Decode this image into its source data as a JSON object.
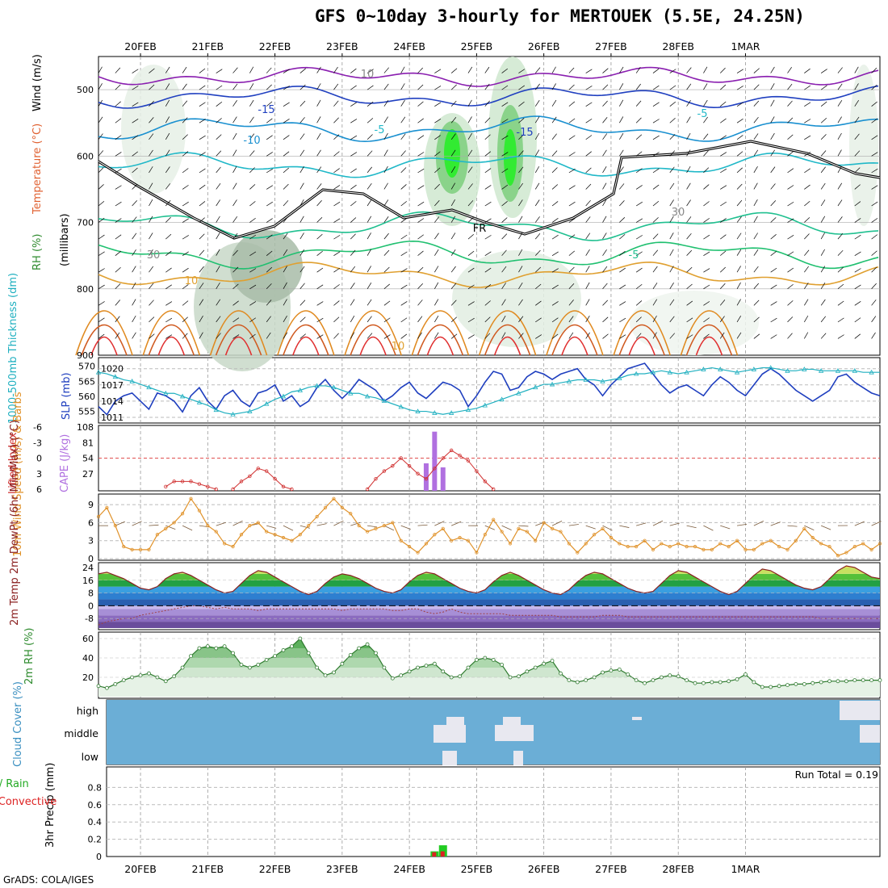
{
  "title": "GFS 0~10day 3-hourly for MERTOUEK (5.5E, 24.25N)",
  "credit": "GrADS: COLA/IGES",
  "run_total": "Run Total = 0.19",
  "date_labels": [
    "20FEB",
    "21FEB",
    "22FEB",
    "23FEB",
    "24FEB",
    "25FEB",
    "26FEB",
    "27FEB",
    "28FEB",
    "1MAR"
  ],
  "colors": {
    "rh_green": "#2e8b2e",
    "temp_red": "#e03030",
    "wind_black": "#000000",
    "cloud_blue": "#6baed6",
    "precip_green": "#22cc22",
    "precip_red": "#dd2222",
    "slp_blue": "#1f3fbf",
    "thickness_cyan": "#20b0c0",
    "cape_purple": "#b070e0",
    "wind10_orange": "#e0922a"
  },
  "chart_data": [
    {
      "type": "heatmap",
      "panel": "upper-air",
      "ylabel": "(millibars)",
      "side_labels": [
        "RH (%)",
        "Temperature (°C)",
        "Wind (m/s)"
      ],
      "y_ticks": [
        "500",
        "600",
        "700",
        "800",
        "900"
      ],
      "contour_labels": [
        "-15",
        "-10",
        "-5",
        "-15",
        "-5",
        "-5",
        "10",
        "10",
        "30",
        "30",
        "FR",
        "10"
      ],
      "isotherms_c": [
        -20,
        -15,
        -10,
        -5,
        0,
        5,
        10,
        15,
        20
      ]
    },
    {
      "type": "line",
      "panel": "slp-thickness",
      "ylabel_left": "1000-500mb Thickness (dm)",
      "ylabel_right": "SLP (mb)",
      "y_ticks_thickness": [
        "570",
        "565",
        "560",
        "555"
      ],
      "y_ticks_slp": [
        "1020",
        "1017",
        "1014",
        "1011"
      ],
      "series": [
        {
          "name": "SLP (mb)",
          "values": [
            1013,
            1011.5,
            1014,
            1015,
            1015.5,
            1014,
            1012.5,
            1015.5,
            1015,
            1014,
            1012,
            1015,
            1016.5,
            1014,
            1012.5,
            1015,
            1016,
            1014,
            1013,
            1015.5,
            1016,
            1017,
            1014,
            1015,
            1013,
            1014,
            1016.5,
            1018,
            1016,
            1014.5,
            1016,
            1018,
            1017,
            1016,
            1014,
            1015,
            1016.5,
            1017.5,
            1015.5,
            1014.5,
            1016,
            1017.5,
            1017,
            1016,
            1013,
            1015,
            1017.5,
            1019.5,
            1019,
            1016,
            1016.5,
            1018.5,
            1019.5,
            1019,
            1018,
            1019,
            1019.5,
            1020,
            1018,
            1017,
            1015,
            1017,
            1018.5,
            1020,
            1020.5,
            1021,
            1019,
            1017,
            1015.5,
            1016.5,
            1017,
            1016,
            1015,
            1017,
            1018.5,
            1017.5,
            1016,
            1015,
            1017,
            1019,
            1020,
            1019,
            1017.5,
            1016,
            1015,
            1014,
            1015,
            1016,
            1018.5,
            1019,
            1017.5,
            1016.5,
            1015.5,
            1015
          ]
        },
        {
          "name": "1000-500mb Thickness (dm)",
          "values": [
            568,
            567.5,
            566.5,
            565.5,
            565,
            564,
            563,
            562,
            561,
            561,
            560,
            559,
            558,
            557,
            555.5,
            554.5,
            554,
            554.5,
            555,
            556,
            557.5,
            559,
            560,
            561.5,
            562,
            563,
            563.5,
            563.5,
            563,
            562,
            561,
            561,
            560,
            559.5,
            558.5,
            557.5,
            556.5,
            555.5,
            555,
            555,
            554.5,
            554,
            554.5,
            555,
            555.5,
            556,
            557,
            558,
            559,
            560,
            561,
            562,
            563,
            564,
            564,
            564.5,
            565,
            565.5,
            565.5,
            565.5,
            565,
            565.5,
            566,
            567,
            567.5,
            567.5,
            568,
            568.5,
            568,
            567.5,
            568,
            568.5,
            569,
            569.5,
            569,
            568.5,
            568,
            568.5,
            569,
            569.5,
            569.5,
            569,
            568.5,
            568.5,
            569,
            569,
            568.5,
            568.5,
            568.5,
            568.5,
            568.5,
            568,
            568,
            568
          ]
        }
      ]
    },
    {
      "type": "bar",
      "panel": "cape-li",
      "ylabel_left": "Lifted Index",
      "ylabel_right": "CAPE (J/kg)",
      "y_ticks_li": [
        "-6",
        "-3",
        "0",
        "3",
        "6"
      ],
      "y_ticks_cape": [
        "108",
        "81",
        "54",
        "27"
      ],
      "series": [
        {
          "name": "CAPE (J/kg)",
          "x_index": [
            39,
            40,
            41
          ],
          "values": [
            45,
            100,
            38
          ]
        },
        {
          "name": "Lifted Index",
          "segments": [
            {
              "start": 8,
              "values": [
                5.5,
                4.5,
                4.5,
                4.5,
                5,
                5.5,
                6
              ]
            },
            {
              "start": 16,
              "values": [
                6,
                4.5,
                3.5,
                2,
                2.5,
                4,
                5.5,
                6
              ]
            },
            {
              "start": 32,
              "values": [
                6,
                4,
                2.5,
                1.5,
                0,
                1.5,
                3,
                4,
                2,
                0,
                -1.5,
                -0.5,
                0.5,
                2.5,
                4.5,
                6
              ]
            }
          ]
        }
      ]
    },
    {
      "type": "line",
      "panel": "wind10m",
      "ylabel": "10m Wind Speed (m/s) & Barbs",
      "y_ticks": [
        "9",
        "6",
        "3",
        "0"
      ],
      "series": [
        {
          "name": "10m Wind Speed (m/s)",
          "values": [
            7,
            8.5,
            5.5,
            2,
            1.5,
            1.5,
            1.5,
            4,
            5,
            6,
            7.5,
            10,
            8,
            5.5,
            4.5,
            2.5,
            2,
            4,
            5.5,
            6,
            4.5,
            4,
            3.5,
            3,
            4,
            5.5,
            7,
            8.5,
            10,
            8.5,
            7.5,
            5.5,
            4.5,
            5,
            5.5,
            6,
            3,
            2,
            1,
            2.5,
            4,
            5,
            3,
            3.5,
            3,
            1,
            4,
            6.5,
            4.5,
            2.5,
            5,
            4.5,
            3,
            6,
            5,
            4.5,
            2.5,
            1,
            2.5,
            4,
            5,
            3.5,
            2.5,
            2,
            2,
            3,
            1.5,
            2.5,
            2,
            2.5,
            2,
            2,
            1.5,
            1.5,
            2.5,
            2,
            3,
            1.5,
            1.5,
            2.5,
            3,
            2,
            1.5,
            3,
            5,
            3.5,
            2.5,
            2,
            0.5,
            1,
            2,
            2.5,
            1.5,
            2.5
          ]
        }
      ]
    },
    {
      "type": "area",
      "panel": "temp2m",
      "ylabel": "2m Temp 2m DewPt (6hr Min/Max) (°C)",
      "y_ticks": [
        "24",
        "16",
        "8",
        "0",
        "-8"
      ],
      "series": [
        {
          "name": "2m Temp",
          "values": [
            20,
            21,
            19,
            17,
            14,
            11,
            10,
            12,
            17,
            20,
            21,
            19,
            16,
            13,
            10,
            8,
            9,
            14,
            19,
            22,
            21,
            18,
            15,
            12,
            9,
            7,
            9,
            14,
            18,
            20,
            19,
            17,
            14,
            11,
            9,
            8,
            10,
            15,
            19,
            21,
            20,
            17,
            14,
            11,
            9,
            8,
            10,
            15,
            19,
            21,
            19,
            16,
            13,
            10,
            8,
            7,
            10,
            15,
            19,
            21,
            20,
            17,
            14,
            11,
            9,
            8,
            9,
            14,
            19,
            22,
            21,
            18,
            15,
            12,
            9,
            7,
            9,
            14,
            19,
            23,
            22,
            19,
            16,
            13,
            11,
            10,
            12,
            17,
            22,
            25,
            24,
            21,
            18,
            17
          ]
        },
        {
          "name": "2m DewPt",
          "values": [
            -12,
            -10,
            -9,
            -8,
            -8,
            -6,
            -5,
            -4,
            -3,
            -2,
            -1,
            0,
            0,
            -1,
            -2,
            -1,
            -2,
            -2,
            -2,
            -3,
            -2,
            -2,
            -2,
            -2,
            -2,
            -2,
            -2,
            -2,
            -2,
            -3,
            -2,
            -2,
            -2,
            -2,
            -2,
            -3,
            -3,
            -2,
            -2,
            -4,
            -5,
            -4,
            -2,
            -4,
            -5,
            -5,
            -5,
            -5,
            -5,
            -6,
            -6,
            -6,
            -6,
            -6,
            -6,
            -7,
            -7,
            -7,
            -7,
            -7,
            -6,
            -6,
            -6,
            -7,
            -7,
            -7,
            -7,
            -7,
            -7,
            -7,
            -7,
            -7,
            -7,
            -7,
            -7,
            -7,
            -7,
            -7,
            -7,
            -7,
            -7,
            -7,
            -7,
            -7,
            -7,
            -7,
            -8,
            -8,
            -8,
            -8,
            -8,
            -8,
            -8,
            -8
          ]
        }
      ]
    },
    {
      "type": "area",
      "panel": "rh2m",
      "ylabel": "2m RH (%)",
      "y_ticks": [
        "60",
        "40",
        "20"
      ],
      "series": [
        {
          "name": "2m RH",
          "values": [
            11,
            9,
            13,
            17,
            20,
            22,
            24,
            20,
            16,
            21,
            30,
            42,
            50,
            52,
            50,
            52,
            45,
            33,
            30,
            33,
            38,
            42,
            48,
            52,
            60,
            45,
            30,
            22,
            25,
            34,
            43,
            50,
            54,
            45,
            30,
            19,
            22,
            26,
            30,
            32,
            34,
            26,
            20,
            21,
            30,
            38,
            40,
            38,
            33,
            20,
            21,
            26,
            30,
            34,
            37,
            24,
            17,
            15,
            17,
            20,
            25,
            27,
            28,
            23,
            17,
            14,
            17,
            20,
            22,
            21,
            17,
            14,
            14,
            15,
            15,
            16,
            18,
            23,
            15,
            10,
            10,
            11,
            12,
            13,
            13,
            14,
            15,
            16,
            16,
            16,
            17,
            17,
            17,
            17
          ]
        }
      ]
    },
    {
      "type": "heatmap",
      "panel": "cloud-cover",
      "ylabel": "Cloud Cover (%)",
      "y_ticks": [
        "high",
        "middle",
        "low"
      ]
    },
    {
      "type": "bar",
      "panel": "precip",
      "ylabel": "3hr Precip (mm)",
      "side_label_1": "Total / Rain",
      "side_label_2": "Convective",
      "y_ticks": [
        "0.8",
        "0.6",
        "0.4",
        "0.2",
        "0"
      ],
      "series": [
        {
          "name": "Total / Rain",
          "x_index": [
            40,
            41
          ],
          "values": [
            0.06,
            0.13
          ]
        },
        {
          "name": "Convective",
          "x_index": [
            40,
            41
          ],
          "values": [
            0.05,
            0.06
          ]
        }
      ]
    }
  ]
}
